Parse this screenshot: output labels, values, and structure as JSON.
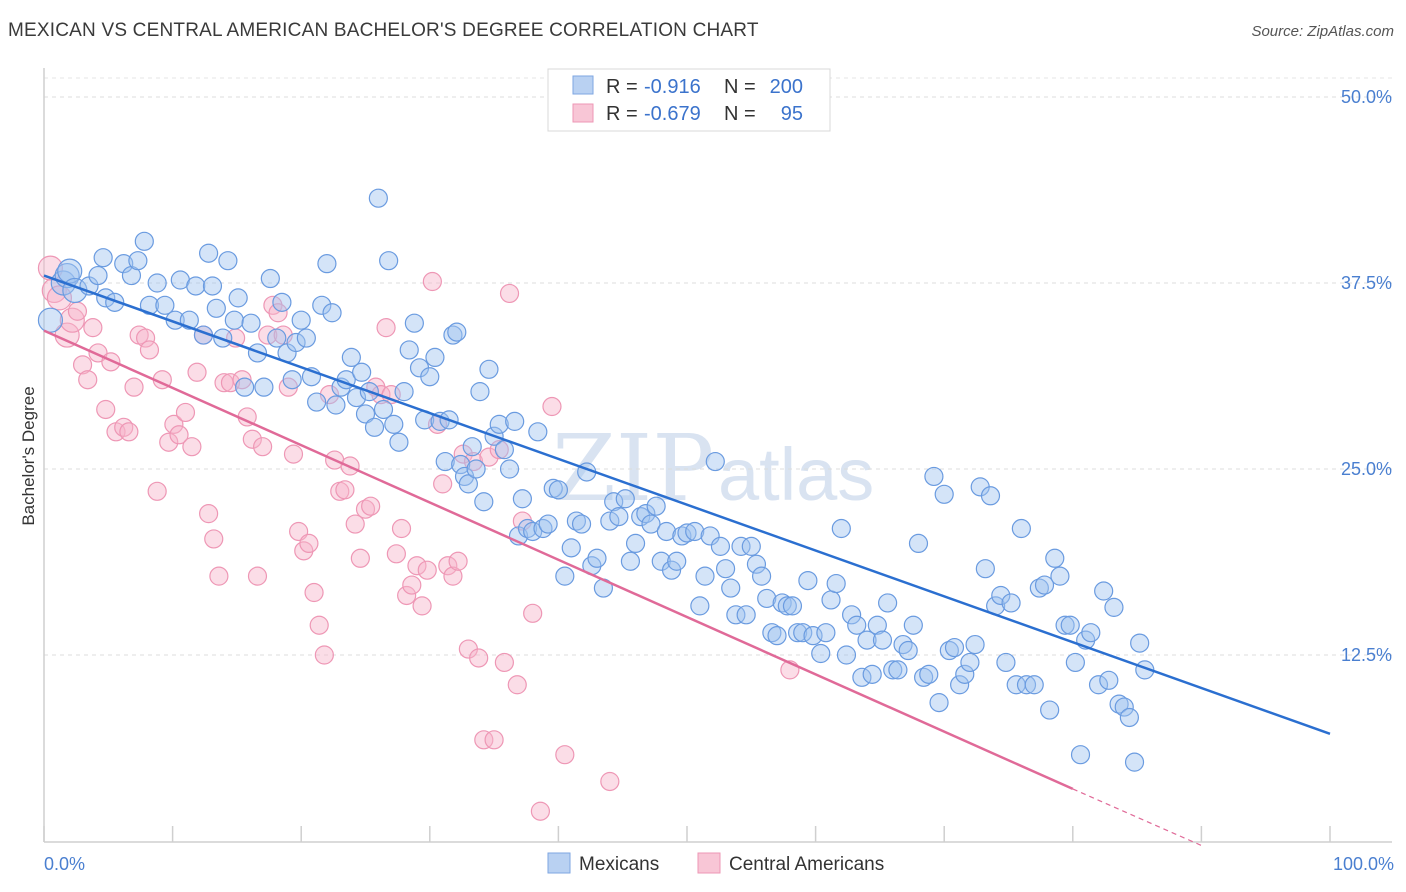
{
  "title": "MEXICAN VS CENTRAL AMERICAN BACHELOR'S DEGREE CORRELATION CHART",
  "source": "Source: ZipAtlas.com",
  "watermark": {
    "zip": "ZIP",
    "atlas": "atlas"
  },
  "legend": {
    "rows": [
      {
        "r_label": "R =",
        "r_value": "-0.916",
        "n_label": "N =",
        "n_value": "200"
      },
      {
        "r_label": "R =",
        "r_value": "-0.679",
        "n_label": "N =",
        "n_value": "95"
      }
    ]
  },
  "chart_data": {
    "type": "scatter",
    "title": "MEXICAN VS CENTRAL AMERICAN BACHELOR'S DEGREE CORRELATION CHART",
    "xlabel": "",
    "ylabel": "Bachelor's Degree",
    "xlim": [
      0,
      100
    ],
    "ylim": [
      0,
      52
    ],
    "x_tick_labels": [
      "0.0%",
      "100.0%"
    ],
    "y_ticks": [
      12.5,
      25.0,
      37.5,
      50.0
    ],
    "y_tick_labels": [
      "12.5%",
      "25.0%",
      "37.5%",
      "50.0%"
    ],
    "grid": true,
    "legend_position": "top-center",
    "colors": {
      "Mexicans": "#6a9be0",
      "Central Americans": "#f09ab8",
      "Mexicans_line": "#2b6fd0",
      "Central Americans_line": "#e06a98"
    },
    "series": [
      {
        "name": "Mexicans",
        "R": -0.916,
        "N": 200,
        "trend": {
          "x": [
            0,
            100
          ],
          "y": [
            38.0,
            7.2
          ]
        },
        "points": [
          [
            0.5,
            35.0
          ],
          [
            1.5,
            37.5
          ],
          [
            1.8,
            38.0
          ],
          [
            2.0,
            38.3
          ],
          [
            2.4,
            37.0
          ],
          [
            3.5,
            37.3
          ],
          [
            4.2,
            38.0
          ],
          [
            4.8,
            36.5
          ],
          [
            5.5,
            36.2
          ],
          [
            4.6,
            39.2
          ],
          [
            6.2,
            38.8
          ],
          [
            6.8,
            38.0
          ],
          [
            7.3,
            39.0
          ],
          [
            7.8,
            40.3
          ],
          [
            8.2,
            36.0
          ],
          [
            8.8,
            37.5
          ],
          [
            9.4,
            36.0
          ],
          [
            10.2,
            35.0
          ],
          [
            10.6,
            37.7
          ],
          [
            11.3,
            35.0
          ],
          [
            11.8,
            37.3
          ],
          [
            12.4,
            34.0
          ],
          [
            12.8,
            39.5
          ],
          [
            13.1,
            37.3
          ],
          [
            13.4,
            35.8
          ],
          [
            13.9,
            33.8
          ],
          [
            14.3,
            39.0
          ],
          [
            14.8,
            35.0
          ],
          [
            15.1,
            36.5
          ],
          [
            15.6,
            30.5
          ],
          [
            16.1,
            34.8
          ],
          [
            16.6,
            32.8
          ],
          [
            17.1,
            30.5
          ],
          [
            17.6,
            37.8
          ],
          [
            18.1,
            33.8
          ],
          [
            18.5,
            36.2
          ],
          [
            18.9,
            32.8
          ],
          [
            19.3,
            31.0
          ],
          [
            19.6,
            33.5
          ],
          [
            20.0,
            35.0
          ],
          [
            20.4,
            33.8
          ],
          [
            20.8,
            31.2
          ],
          [
            21.2,
            29.5
          ],
          [
            21.6,
            36.0
          ],
          [
            22.0,
            38.8
          ],
          [
            22.4,
            35.5
          ],
          [
            22.7,
            29.3
          ],
          [
            23.1,
            30.5
          ],
          [
            23.5,
            31.0
          ],
          [
            23.9,
            32.5
          ],
          [
            24.3,
            29.8
          ],
          [
            24.7,
            31.5
          ],
          [
            25.0,
            28.7
          ],
          [
            25.3,
            30.2
          ],
          [
            25.7,
            27.8
          ],
          [
            26.0,
            43.2
          ],
          [
            26.4,
            29.0
          ],
          [
            26.8,
            39.0
          ],
          [
            27.2,
            28.0
          ],
          [
            27.6,
            26.8
          ],
          [
            28.0,
            30.2
          ],
          [
            28.4,
            33.0
          ],
          [
            28.8,
            34.8
          ],
          [
            29.2,
            31.8
          ],
          [
            29.6,
            28.3
          ],
          [
            30.0,
            31.2
          ],
          [
            30.4,
            32.5
          ],
          [
            30.8,
            28.2
          ],
          [
            31.2,
            25.5
          ],
          [
            31.5,
            28.3
          ],
          [
            31.8,
            34.0
          ],
          [
            32.1,
            34.2
          ],
          [
            32.4,
            25.3
          ],
          [
            32.7,
            24.5
          ],
          [
            33.0,
            24.0
          ],
          [
            33.3,
            26.5
          ],
          [
            33.6,
            25.0
          ],
          [
            33.9,
            30.2
          ],
          [
            34.2,
            22.8
          ],
          [
            34.6,
            31.7
          ],
          [
            35.0,
            27.2
          ],
          [
            35.4,
            28.0
          ],
          [
            35.8,
            26.3
          ],
          [
            36.2,
            25.0
          ],
          [
            36.6,
            28.2
          ],
          [
            36.9,
            20.5
          ],
          [
            37.2,
            23.0
          ],
          [
            37.6,
            21.0
          ],
          [
            38.0,
            20.8
          ],
          [
            38.4,
            27.5
          ],
          [
            38.8,
            21.0
          ],
          [
            39.2,
            21.3
          ],
          [
            39.6,
            23.7
          ],
          [
            40.0,
            23.6
          ],
          [
            40.5,
            17.8
          ],
          [
            41.0,
            19.7
          ],
          [
            41.4,
            21.5
          ],
          [
            41.8,
            21.3
          ],
          [
            42.2,
            24.8
          ],
          [
            42.6,
            18.5
          ],
          [
            43.0,
            19.0
          ],
          [
            43.5,
            17.0
          ],
          [
            44.0,
            21.5
          ],
          [
            44.3,
            22.8
          ],
          [
            44.7,
            21.8
          ],
          [
            45.2,
            23.0
          ],
          [
            45.6,
            18.8
          ],
          [
            46.0,
            20.0
          ],
          [
            46.4,
            21.8
          ],
          [
            46.8,
            22.0
          ],
          [
            47.2,
            21.3
          ],
          [
            47.6,
            22.5
          ],
          [
            48.0,
            18.8
          ],
          [
            48.4,
            20.8
          ],
          [
            48.8,
            18.2
          ],
          [
            49.2,
            18.8
          ],
          [
            49.6,
            20.5
          ],
          [
            50.0,
            20.7
          ],
          [
            50.6,
            20.8
          ],
          [
            51.0,
            15.8
          ],
          [
            51.4,
            17.8
          ],
          [
            51.8,
            20.5
          ],
          [
            52.2,
            25.5
          ],
          [
            52.6,
            19.8
          ],
          [
            53.0,
            18.3
          ],
          [
            53.4,
            17.0
          ],
          [
            53.8,
            15.2
          ],
          [
            54.2,
            19.8
          ],
          [
            54.6,
            15.2
          ],
          [
            55.0,
            19.8
          ],
          [
            55.4,
            18.6
          ],
          [
            55.8,
            17.8
          ],
          [
            56.2,
            16.3
          ],
          [
            56.6,
            14.0
          ],
          [
            57.0,
            13.8
          ],
          [
            57.4,
            16.0
          ],
          [
            57.8,
            15.8
          ],
          [
            58.2,
            15.8
          ],
          [
            58.6,
            14.0
          ],
          [
            59.0,
            14.0
          ],
          [
            59.4,
            17.5
          ],
          [
            59.8,
            13.8
          ],
          [
            60.4,
            12.6
          ],
          [
            60.8,
            14.0
          ],
          [
            61.2,
            16.2
          ],
          [
            61.6,
            17.3
          ],
          [
            62.0,
            21.0
          ],
          [
            62.4,
            12.5
          ],
          [
            62.8,
            15.2
          ],
          [
            63.2,
            14.5
          ],
          [
            63.6,
            11.0
          ],
          [
            64.0,
            13.5
          ],
          [
            64.4,
            11.2
          ],
          [
            64.8,
            14.5
          ],
          [
            65.2,
            13.5
          ],
          [
            65.6,
            16.0
          ],
          [
            66.0,
            11.5
          ],
          [
            66.4,
            11.5
          ],
          [
            66.8,
            13.2
          ],
          [
            67.2,
            12.8
          ],
          [
            67.6,
            14.5
          ],
          [
            68.0,
            20.0
          ],
          [
            68.4,
            11.0
          ],
          [
            68.8,
            11.2
          ],
          [
            69.2,
            24.5
          ],
          [
            69.6,
            9.3
          ],
          [
            70.0,
            23.3
          ],
          [
            70.4,
            12.8
          ],
          [
            70.8,
            13.0
          ],
          [
            71.2,
            10.5
          ],
          [
            71.6,
            11.2
          ],
          [
            72.0,
            12.0
          ],
          [
            72.4,
            13.2
          ],
          [
            72.8,
            23.8
          ],
          [
            73.2,
            18.3
          ],
          [
            73.6,
            23.2
          ],
          [
            74.0,
            15.8
          ],
          [
            74.4,
            16.5
          ],
          [
            74.8,
            12.0
          ],
          [
            75.2,
            16.0
          ],
          [
            75.6,
            10.5
          ],
          [
            76.0,
            21.0
          ],
          [
            76.4,
            10.5
          ],
          [
            77.0,
            10.5
          ],
          [
            77.4,
            17.0
          ],
          [
            77.8,
            17.2
          ],
          [
            78.2,
            8.8
          ],
          [
            78.6,
            19.0
          ],
          [
            79.0,
            17.8
          ],
          [
            79.4,
            14.5
          ],
          [
            79.8,
            14.5
          ],
          [
            80.2,
            12.0
          ],
          [
            80.6,
            5.8
          ],
          [
            81.0,
            13.5
          ],
          [
            81.4,
            14.0
          ],
          [
            82.0,
            10.5
          ],
          [
            82.4,
            16.8
          ],
          [
            82.8,
            10.8
          ],
          [
            83.2,
            15.7
          ],
          [
            83.6,
            9.2
          ],
          [
            84.0,
            9.0
          ],
          [
            84.4,
            8.3
          ],
          [
            84.8,
            5.3
          ],
          [
            85.2,
            13.3
          ],
          [
            85.6,
            11.5
          ]
        ]
      },
      {
        "name": "Central Americans",
        "R": -0.679,
        "N": 95,
        "trend": {
          "x": [
            0,
            80
          ],
          "y": [
            34.3,
            3.5
          ]
        },
        "trend_dashed": {
          "x": [
            80,
            90
          ],
          "y": [
            3.5,
            -0.3
          ]
        },
        "points": [
          [
            0.5,
            38.5
          ],
          [
            0.8,
            37.0
          ],
          [
            1.2,
            36.5
          ],
          [
            1.8,
            34.0
          ],
          [
            2.2,
            35.0
          ],
          [
            2.6,
            35.6
          ],
          [
            3.0,
            32.0
          ],
          [
            3.4,
            31.0
          ],
          [
            3.8,
            34.5
          ],
          [
            4.2,
            32.8
          ],
          [
            4.8,
            29.0
          ],
          [
            5.2,
            32.2
          ],
          [
            5.6,
            27.5
          ],
          [
            6.2,
            27.8
          ],
          [
            6.6,
            27.5
          ],
          [
            7.0,
            30.5
          ],
          [
            7.4,
            34.0
          ],
          [
            7.9,
            33.8
          ],
          [
            8.2,
            33.0
          ],
          [
            8.8,
            23.5
          ],
          [
            9.2,
            31.0
          ],
          [
            9.7,
            26.8
          ],
          [
            10.1,
            28.0
          ],
          [
            10.5,
            27.3
          ],
          [
            11.0,
            28.8
          ],
          [
            11.5,
            26.5
          ],
          [
            11.9,
            31.5
          ],
          [
            12.4,
            34.0
          ],
          [
            12.8,
            22.0
          ],
          [
            13.2,
            20.3
          ],
          [
            13.6,
            17.8
          ],
          [
            14.0,
            30.8
          ],
          [
            14.5,
            30.8
          ],
          [
            14.9,
            33.8
          ],
          [
            15.4,
            31.0
          ],
          [
            15.8,
            28.5
          ],
          [
            16.2,
            27.0
          ],
          [
            16.6,
            17.8
          ],
          [
            17.0,
            26.5
          ],
          [
            17.4,
            34.0
          ],
          [
            17.8,
            36.0
          ],
          [
            18.2,
            35.5
          ],
          [
            18.6,
            34.0
          ],
          [
            19.0,
            30.5
          ],
          [
            19.4,
            26.0
          ],
          [
            19.8,
            20.8
          ],
          [
            20.2,
            19.5
          ],
          [
            20.6,
            20.0
          ],
          [
            21.0,
            16.7
          ],
          [
            21.4,
            14.5
          ],
          [
            21.8,
            12.5
          ],
          [
            22.2,
            30.0
          ],
          [
            22.6,
            25.6
          ],
          [
            23.0,
            23.5
          ],
          [
            23.4,
            23.6
          ],
          [
            23.8,
            25.2
          ],
          [
            24.2,
            21.3
          ],
          [
            24.6,
            19.0
          ],
          [
            25.0,
            22.3
          ],
          [
            25.4,
            22.5
          ],
          [
            25.8,
            30.5
          ],
          [
            26.2,
            30.0
          ],
          [
            26.6,
            34.5
          ],
          [
            27.0,
            30.0
          ],
          [
            27.4,
            19.3
          ],
          [
            27.8,
            21.0
          ],
          [
            28.2,
            16.5
          ],
          [
            28.6,
            17.2
          ],
          [
            29.0,
            18.5
          ],
          [
            29.4,
            15.8
          ],
          [
            29.8,
            18.2
          ],
          [
            30.2,
            37.6
          ],
          [
            30.6,
            28.0
          ],
          [
            31.0,
            24.0
          ],
          [
            31.4,
            18.5
          ],
          [
            31.8,
            17.8
          ],
          [
            32.2,
            18.8
          ],
          [
            32.6,
            26.0
          ],
          [
            33.0,
            12.9
          ],
          [
            33.4,
            25.5
          ],
          [
            33.8,
            12.3
          ],
          [
            34.2,
            6.8
          ],
          [
            34.6,
            25.8
          ],
          [
            35.0,
            6.8
          ],
          [
            35.4,
            26.3
          ],
          [
            35.8,
            12.0
          ],
          [
            36.2,
            36.8
          ],
          [
            36.8,
            10.5
          ],
          [
            37.2,
            21.5
          ],
          [
            38.0,
            15.3
          ],
          [
            38.6,
            2.0
          ],
          [
            39.5,
            29.2
          ],
          [
            40.5,
            5.8
          ],
          [
            44.0,
            4.0
          ],
          [
            58.0,
            11.5
          ]
        ]
      }
    ]
  },
  "bottom_legend": [
    {
      "label": "Mexicans"
    },
    {
      "label": "Central Americans"
    }
  ]
}
